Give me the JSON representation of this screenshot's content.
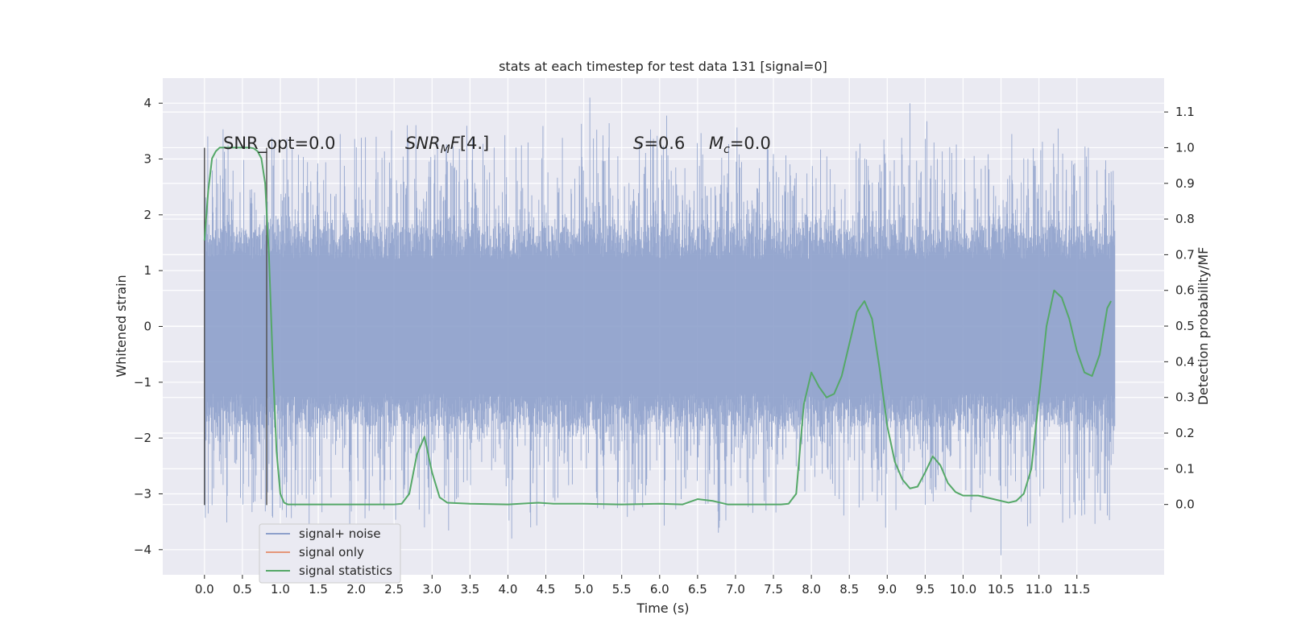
{
  "chart_data": {
    "type": "line",
    "title": "stats at each timestep for test data 131 [signal=0]",
    "xlabel": "Time (s)",
    "ylabel": "Whitened strain",
    "y2label": "Detection probability/MF",
    "xlim": [
      -0.55,
      12.65
    ],
    "ylim": [
      -4.45,
      4.45
    ],
    "y2lim": [
      -0.197,
      1.195
    ],
    "x_ticks": [
      0.0,
      0.5,
      1.0,
      1.5,
      2.0,
      2.5,
      3.0,
      3.5,
      4.0,
      4.5,
      5.0,
      5.5,
      6.0,
      6.5,
      7.0,
      7.5,
      8.0,
      8.5,
      9.0,
      9.5,
      10.0,
      10.5,
      11.0,
      11.5
    ],
    "x_tick_labels": [
      "0.0",
      "0.5",
      "1.0",
      "1.5",
      "2.0",
      "2.5",
      "3.0",
      "3.5",
      "4.0",
      "4.5",
      "5.0",
      "5.5",
      "6.0",
      "6.5",
      "7.0",
      "7.5",
      "8.0",
      "8.5",
      "9.0",
      "9.5",
      "10.0",
      "10.5",
      "11.0",
      "11.5"
    ],
    "y_ticks": [
      -4,
      -3,
      -2,
      -1,
      0,
      1,
      2,
      3,
      4
    ],
    "y_tick_labels": [
      "−4",
      "−3",
      "−2",
      "−1",
      "0",
      "1",
      "2",
      "3",
      "4"
    ],
    "y2_ticks": [
      0.0,
      0.1,
      0.2,
      0.3,
      0.4,
      0.5,
      0.6,
      0.7,
      0.8,
      0.9,
      1.0,
      1.1
    ],
    "y2_tick_labels": [
      "0.0",
      "0.1",
      "0.2",
      "0.3",
      "0.4",
      "0.5",
      "0.6",
      "0.7",
      "0.8",
      "0.9",
      "1.0",
      "1.1"
    ],
    "grid": true,
    "legend_position": "lower-left",
    "annotations": {
      "snr_opt": "SNR_opt=0.0",
      "snr_mf": "[4.]",
      "s_value": "=0.6",
      "mc_value": "=0.0"
    },
    "series": [
      {
        "name": "signal+ noise",
        "axis": "left",
        "color": "#8da0cb",
        "kind": "noise",
        "x_range": [
          0.0,
          12.0
        ],
        "envelope": [
          -4.1,
          4.1
        ],
        "notable_peaks": [
          [
            5.08,
            4.1
          ],
          [
            9.3,
            4.0
          ],
          [
            10.5,
            -4.1
          ],
          [
            0.1,
            -3.2
          ],
          [
            2.9,
            -3.6
          ],
          [
            4.05,
            -3.8
          ],
          [
            4.3,
            -3.6
          ]
        ]
      },
      {
        "name": "signal only",
        "axis": "left",
        "color": "#e5977a",
        "kind": "flat",
        "x": [
          0.0,
          12.0
        ],
        "y": [
          0.0,
          0.0
        ]
      },
      {
        "name": "signal statistics",
        "axis": "right",
        "color": "#55a868",
        "kind": "line",
        "x": [
          0.0,
          0.05,
          0.1,
          0.15,
          0.2,
          0.3,
          0.4,
          0.5,
          0.6,
          0.65,
          0.7,
          0.75,
          0.8,
          0.85,
          0.9,
          0.95,
          1.0,
          1.05,
          1.1,
          1.5,
          2.0,
          2.5,
          2.6,
          2.7,
          2.8,
          2.9,
          3.0,
          3.1,
          3.2,
          3.5,
          4.0,
          4.4,
          4.6,
          5.0,
          5.5,
          6.0,
          6.3,
          6.5,
          6.7,
          6.9,
          7.2,
          7.6,
          7.7,
          7.8,
          7.9,
          8.0,
          8.1,
          8.2,
          8.3,
          8.4,
          8.5,
          8.6,
          8.7,
          8.8,
          8.9,
          9.0,
          9.1,
          9.2,
          9.3,
          9.4,
          9.5,
          9.6,
          9.7,
          9.8,
          9.9,
          10.0,
          10.2,
          10.4,
          10.6,
          10.7,
          10.8,
          10.9,
          11.0,
          11.1,
          11.2,
          11.3,
          11.4,
          11.5,
          11.6,
          11.7,
          11.8,
          11.9,
          11.95
        ],
        "y": [
          0.74,
          0.88,
          0.97,
          0.99,
          1.0,
          1.0,
          1.0,
          1.0,
          1.0,
          0.998,
          0.99,
          0.97,
          0.9,
          0.7,
          0.4,
          0.15,
          0.03,
          0.005,
          0.0,
          0.0,
          0.0,
          0.0,
          0.002,
          0.03,
          0.14,
          0.19,
          0.09,
          0.02,
          0.005,
          0.002,
          0.0,
          0.005,
          0.002,
          0.002,
          0.0,
          0.002,
          0.0,
          0.015,
          0.01,
          0.0,
          0.0,
          0.0,
          0.002,
          0.03,
          0.28,
          0.37,
          0.33,
          0.3,
          0.31,
          0.36,
          0.45,
          0.54,
          0.57,
          0.52,
          0.38,
          0.22,
          0.12,
          0.07,
          0.045,
          0.05,
          0.09,
          0.135,
          0.11,
          0.06,
          0.035,
          0.025,
          0.025,
          0.015,
          0.005,
          0.01,
          0.03,
          0.1,
          0.3,
          0.5,
          0.6,
          0.58,
          0.52,
          0.43,
          0.37,
          0.36,
          0.42,
          0.55,
          0.57
        ]
      },
      {
        "name": "",
        "axis": "left",
        "color": "#555555",
        "kind": "vline",
        "segments": [
          [
            0.0,
            -3.2,
            3.2
          ],
          [
            0.82,
            -3.2,
            3.2
          ]
        ]
      }
    ]
  }
}
